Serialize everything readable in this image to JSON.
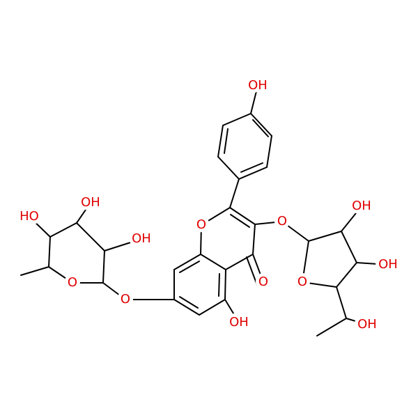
{
  "atoms": [
    {
      "label": "OH"
    },
    {
      "label": "O"
    },
    {
      "label": "O"
    },
    {
      "label": "OH"
    },
    {
      "label": "OH"
    },
    {
      "label": "O"
    },
    {
      "label": "O"
    },
    {
      "label": "OH"
    },
    {
      "label": "OH"
    },
    {
      "label": "O"
    },
    {
      "label": "O"
    },
    {
      "label": "HO"
    },
    {
      "label": "OH"
    },
    {
      "label": "OH"
    }
  ]
}
